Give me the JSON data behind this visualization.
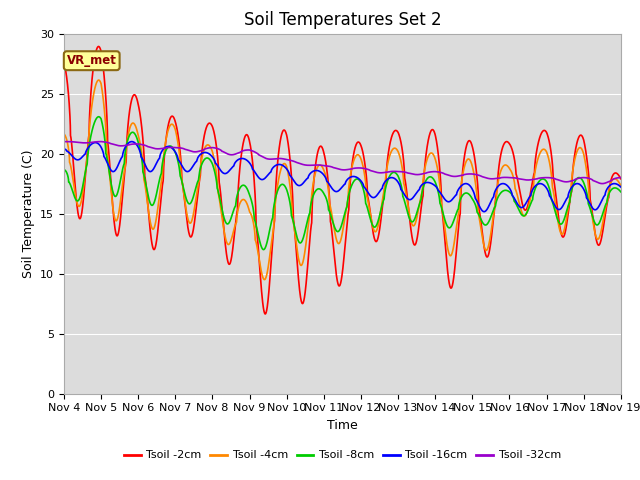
{
  "title": "Soil Temperatures Set 2",
  "xlabel": "Time",
  "ylabel": "Soil Temperature (C)",
  "ylim": [
    0,
    30
  ],
  "annotation": "VR_met",
  "background_color": "#dcdcdc",
  "tick_dates": [
    "Nov 4",
    "Nov 5",
    "Nov 6",
    "Nov 7",
    "Nov 8",
    "Nov 9",
    "Nov 10",
    "Nov 11",
    "Nov 12",
    "Nov 13",
    "Nov 14",
    "Nov 15",
    "Nov 16",
    "Nov 17",
    "Nov 18",
    "Nov 19"
  ],
  "lines": {
    "Tsoil -2cm": {
      "color": "#ff0000",
      "lw": 1.2,
      "peaks": [
        28.0,
        29.0,
        24.5,
        23.0,
        22.5,
        21.5,
        22.0,
        20.5,
        21.0,
        22.0,
        22.0,
        21.0,
        21.0,
        22.0,
        21.5,
        18.0
      ],
      "troughs": [
        15.0,
        14.0,
        12.0,
        12.0,
        14.5,
        6.0,
        7.5,
        7.5,
        11.0,
        15.0,
        9.0,
        8.5,
        15.5,
        15.0,
        10.5,
        15.0
      ],
      "peak_phase": 0.65,
      "trough_phase": 0.15
    },
    "Tsoil -4cm": {
      "color": "#ff8800",
      "lw": 1.2,
      "peaks": [
        22.0,
        26.5,
        22.0,
        22.5,
        20.5,
        15.5,
        19.5,
        19.0,
        20.0,
        20.5,
        20.0,
        19.5,
        19.0,
        20.5,
        20.5,
        17.5
      ],
      "troughs": [
        16.0,
        15.0,
        13.5,
        14.0,
        14.5,
        9.5,
        9.5,
        12.5,
        12.5,
        15.0,
        12.5,
        10.0,
        15.0,
        14.5,
        11.5,
        15.0
      ],
      "peak_phase": 0.7,
      "trough_phase": 0.2
    },
    "Tsoil -8cm": {
      "color": "#00cc00",
      "lw": 1.2,
      "peaks": [
        19.0,
        23.5,
        21.5,
        20.5,
        19.5,
        17.0,
        17.5,
        17.0,
        18.0,
        18.5,
        18.0,
        16.5,
        17.0,
        18.0,
        18.0,
        17.0
      ],
      "troughs": [
        15.5,
        17.0,
        15.5,
        16.0,
        15.5,
        12.0,
        12.0,
        13.5,
        13.5,
        14.5,
        14.0,
        13.5,
        15.0,
        14.5,
        13.5,
        15.0
      ],
      "peak_phase": 0.75,
      "trough_phase": 0.25
    },
    "Tsoil -16cm": {
      "color": "#0000ff",
      "lw": 1.2,
      "peaks": [
        20.5,
        21.0,
        21.0,
        20.5,
        20.0,
        19.5,
        19.0,
        18.5,
        18.0,
        18.0,
        17.5,
        17.5,
        17.5,
        17.5,
        17.5,
        17.5
      ],
      "troughs": [
        20.0,
        18.5,
        18.5,
        18.5,
        18.5,
        18.0,
        17.5,
        17.0,
        16.5,
        16.0,
        16.5,
        15.0,
        15.5,
        15.5,
        15.0,
        16.0
      ],
      "peak_phase": 0.85,
      "trough_phase": 0.35
    },
    "Tsoil -32cm": {
      "color": "#9900cc",
      "lw": 1.2,
      "peaks": [
        21.0,
        21.0,
        20.8,
        20.5,
        20.5,
        20.3,
        19.5,
        19.0,
        18.8,
        18.5,
        18.5,
        18.3,
        18.0,
        18.0,
        18.0,
        18.0
      ],
      "troughs": [
        21.0,
        20.8,
        20.5,
        20.3,
        20.0,
        19.8,
        19.3,
        18.8,
        18.5,
        18.3,
        18.2,
        18.0,
        17.8,
        17.8,
        17.5,
        17.5
      ],
      "peak_phase": 0.5,
      "trough_phase": 0.0
    }
  },
  "title_fontsize": 12,
  "axis_label_fontsize": 9,
  "tick_fontsize": 8
}
